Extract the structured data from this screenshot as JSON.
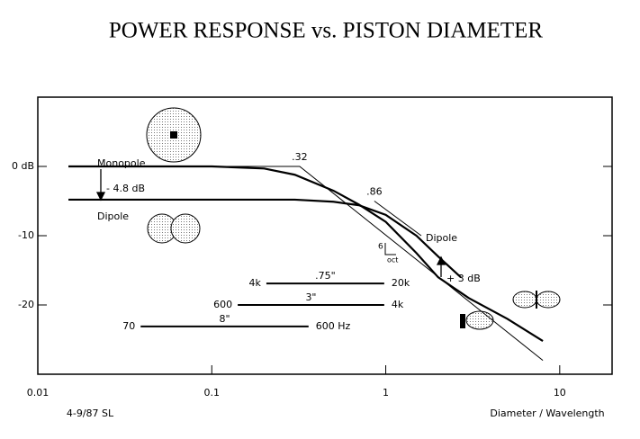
{
  "chart_data": {
    "type": "line",
    "title": "POWER RESPONSE vs. PISTON DIAMETER",
    "xlabel": "Diameter / Wavelength",
    "footnote": "4-9/87 SL",
    "xscale": "log",
    "xlim": [
      0.01,
      20
    ],
    "ylim": [
      -30,
      10
    ],
    "xticks": [
      0.01,
      0.1,
      1,
      10
    ],
    "yticks": [
      {
        "value": 0,
        "label": "0 dB"
      },
      -10,
      -20
    ],
    "series": [
      {
        "name": "Monopole",
        "color": "#000000",
        "x": [
          0.015,
          0.1,
          0.2,
          0.3,
          0.5,
          0.7,
          1,
          1.5,
          2,
          3,
          5,
          8
        ],
        "values": [
          0,
          0,
          -0.3,
          -1.2,
          -3.5,
          -5.5,
          -8,
          -12.5,
          -16,
          -19,
          -22,
          -25.2
        ]
      },
      {
        "name": "Dipole",
        "color": "#000000",
        "x": [
          0.015,
          0.3,
          0.5,
          0.7,
          1,
          1.5,
          2,
          2.7
        ],
        "values": [
          -4.8,
          -4.8,
          -5.1,
          -5.6,
          -7,
          -10,
          -13,
          -16
        ]
      }
    ],
    "asymptotes": [
      {
        "label": ".32",
        "x": [
          0.015,
          0.32,
          8
        ],
        "values": [
          0,
          0,
          -28
        ]
      },
      {
        "label": ".86",
        "x": [
          0.86,
          1.6
        ],
        "values": [
          -5,
          -10
        ]
      }
    ],
    "ranges": [
      {
        "label": ".75\"",
        "from": "4k",
        "to": "20k",
        "x": [
          0.206,
          0.98
        ],
        "value": -16.9
      },
      {
        "label": "3\"",
        "from": "600",
        "to": "4k",
        "x": [
          0.141,
          0.98
        ],
        "value": -20
      },
      {
        "label": "8\"",
        "from": "70",
        "to": "600 Hz",
        "x": [
          0.039,
          0.36
        ],
        "value": -23.1
      }
    ],
    "annotations": [
      "- 4.8 dB",
      "+ 3 dB",
      "6",
      "oct"
    ]
  }
}
